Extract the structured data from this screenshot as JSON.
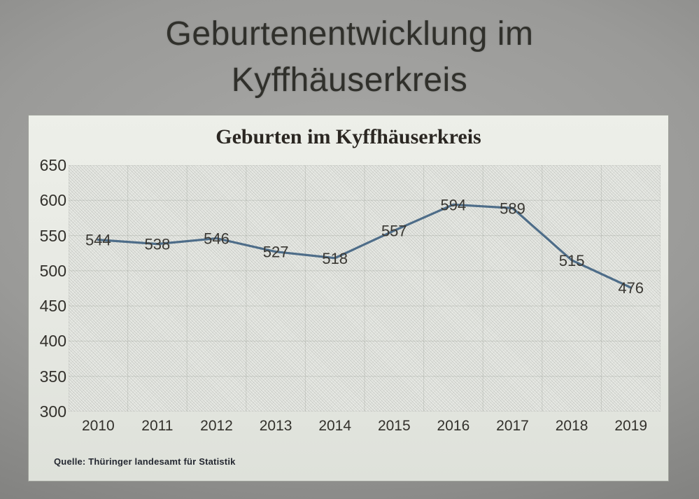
{
  "slide": {
    "title_line1": "Geburtenentwicklung im",
    "title_line2": "Kyffhäuserkreis"
  },
  "chart_data": {
    "type": "line",
    "title": "Geburten im Kyffhäuserkreis",
    "categories": [
      "2010",
      "2011",
      "2012",
      "2013",
      "2014",
      "2015",
      "2016",
      "2017",
      "2018",
      "2019"
    ],
    "series": [
      {
        "name": "Geburten",
        "values": [
          544,
          538,
          546,
          527,
          518,
          557,
          594,
          589,
          515,
          476
        ]
      }
    ],
    "data_labels": [
      544,
      538,
      546,
      527,
      518,
      557,
      594,
      589,
      515,
      476
    ],
    "xlabel": "",
    "ylabel": "",
    "ylim": [
      300,
      650
    ],
    "yticks": [
      650,
      600,
      550,
      500,
      450,
      400,
      350,
      300
    ],
    "ytick_interval": 50,
    "grid": "horizontal and vertical, faint",
    "legend": "none",
    "source": "Quelle: Thüringer landesamt für Statistik",
    "colors": {
      "line": "#4e6d89",
      "data_label": "#3a3833",
      "axis_label": "#32302b",
      "chart_title": "#2b2722",
      "slide_title": "#30302b",
      "source_text": "#242831",
      "grid_line": "#8c908a"
    }
  }
}
